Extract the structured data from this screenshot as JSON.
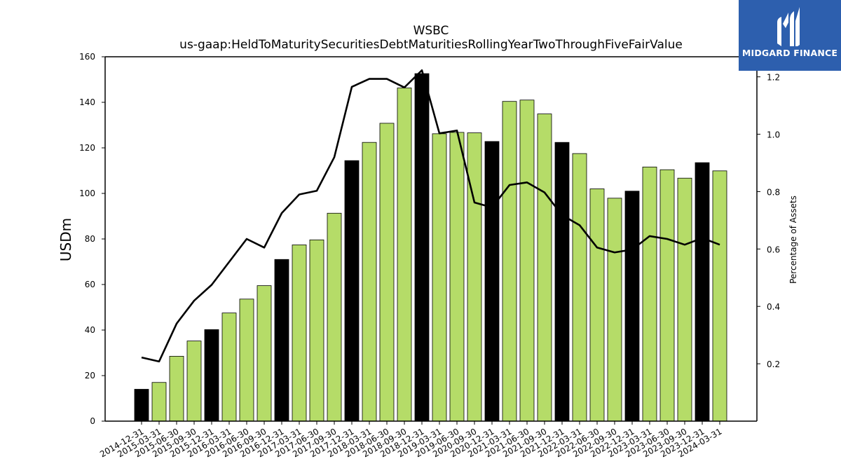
{
  "chart_data": {
    "type": "bar",
    "title": "WSBC",
    "subtitle": "us-gaap:HeldToMaturitySecuritiesDebtMaturitiesRollingYearTwoThroughFiveFairValue",
    "ylabel": "USDm",
    "y2label": "Percentage of Assets",
    "ylim": [
      0,
      160
    ],
    "y2lim": [
      0,
      1.27
    ],
    "yticks": [
      "0",
      "20",
      "40",
      "60",
      "80",
      "100",
      "120",
      "140",
      "160"
    ],
    "y2ticks": [
      "0.2",
      "0.4",
      "0.6",
      "0.8",
      "1.0",
      "1.2"
    ],
    "grid": false,
    "categories": [
      "2014-12-31",
      "2015-03-31",
      "2015-06-30",
      "2015-09-30",
      "2015-12-31",
      "2016-03-31",
      "2016-06-30",
      "2016-09-30",
      "2016-12-31",
      "2017-03-31",
      "2017-06-30",
      "2017-09-30",
      "2017-12-31",
      "2018-03-31",
      "2018-06-30",
      "2018-09-30",
      "2018-12-31",
      "2019-03-31",
      "2019-06-30",
      "2020-09-30",
      "2020-12-31",
      "2021-03-31",
      "2021-06-30",
      "2021-09-30",
      "2021-12-31",
      "2022-03-31",
      "2022-06-30",
      "2022-09-30",
      "2022-12-31",
      "2023-03-31",
      "2023-06-30",
      "2023-09-30",
      "2023-12-31",
      "2024-03-31"
    ],
    "series": [
      {
        "kind": "bar",
        "values": [
          14,
          17,
          28.5,
          35.2,
          40.2,
          47.5,
          53.6,
          59.5,
          71,
          77.4,
          79.6,
          91.3,
          114.4,
          122.4,
          130.8,
          146.3,
          152.6,
          126.2,
          126.8,
          126.6,
          122.8,
          140.4,
          141,
          134.9,
          122.4,
          117.5,
          102,
          97.9,
          101,
          111.6,
          110.4,
          106.7,
          113.5,
          109.9
        ],
        "highlight": [
          true,
          false,
          false,
          false,
          true,
          false,
          false,
          false,
          true,
          false,
          false,
          false,
          true,
          false,
          false,
          false,
          true,
          false,
          false,
          false,
          true,
          false,
          false,
          false,
          true,
          false,
          false,
          false,
          true,
          false,
          false,
          false,
          true,
          false
        ]
      },
      {
        "kind": "line",
        "axis": "right",
        "values": [
          0.222,
          0.208,
          0.34,
          0.42,
          0.475,
          0.555,
          0.635,
          0.605,
          0.725,
          0.79,
          0.803,
          0.92,
          1.165,
          1.193,
          1.193,
          1.163,
          1.223,
          1.003,
          1.013,
          0.762,
          0.745,
          0.823,
          0.832,
          0.797,
          0.718,
          0.683,
          0.605,
          0.588,
          0.598,
          0.645,
          0.635,
          0.615,
          0.638,
          0.615
        ]
      }
    ],
    "colors": {
      "bar": "#b5dc68",
      "bar_highlight": "#000000",
      "line": "#000000"
    }
  },
  "logo": {
    "text": "MIDGARD FINANCE",
    "background": "#2d5fae"
  }
}
